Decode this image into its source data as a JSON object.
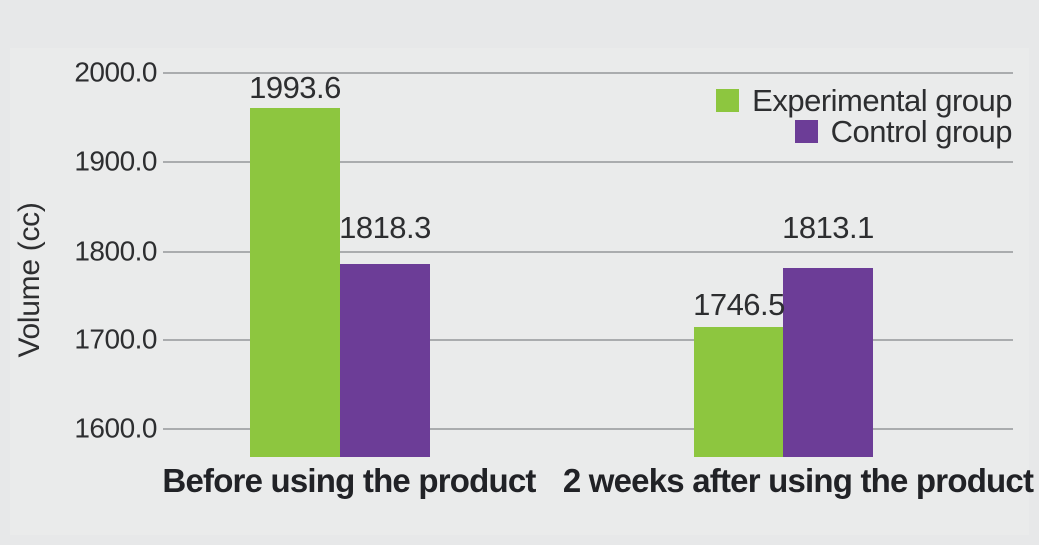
{
  "chart_data": {
    "type": "bar",
    "title": "",
    "ylabel": "Volume (cc)",
    "xlabel": "",
    "categories": [
      "Before using the product",
      "2 weeks after using the product"
    ],
    "series": [
      {
        "name": "Experimental group",
        "color": "#8dc63f",
        "values": [
          1993.6,
          1746.5
        ]
      },
      {
        "name": "Control group",
        "color": "#6c3d97",
        "values": [
          1818.3,
          1813.1
        ]
      }
    ],
    "data_labels": [
      "1993.6",
      "1818.3",
      "1746.5",
      "1813.1"
    ],
    "y_ticks": [
      "2000.0",
      "1900.0",
      "1800.0",
      "1700.0",
      "1600.0"
    ],
    "ylim": [
      1600,
      2000
    ],
    "grid": true,
    "legend_position": "top-right"
  },
  "colors": {
    "background": "#e7e8e9",
    "panel": "#eaebeb",
    "gridline": "#aaacae",
    "text": "#2d2e30",
    "experimental_green": "#8dc63f",
    "control_purple": "#6c3d97"
  }
}
